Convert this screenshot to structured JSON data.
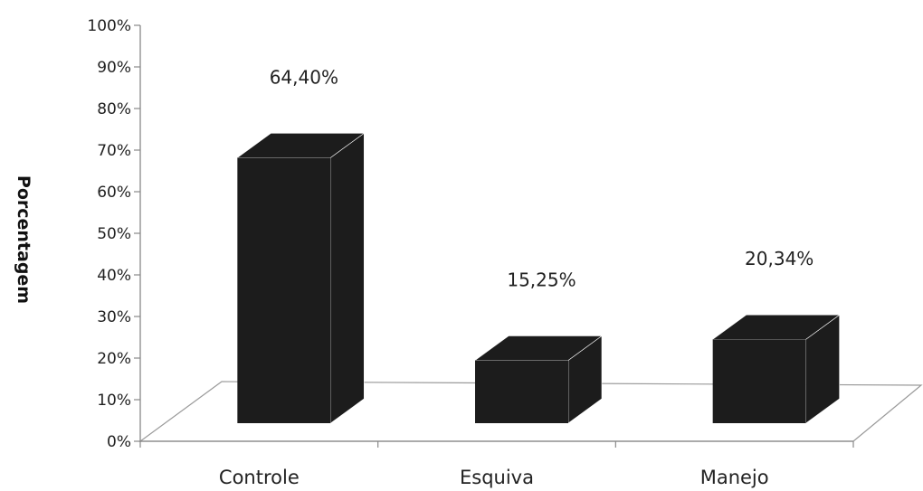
{
  "chart_data": {
    "type": "bar",
    "style": "3d-column",
    "title": "",
    "xlabel": "",
    "ylabel": "Porcentagem",
    "categories": [
      "Controle",
      "Esquiva",
      "Manejo"
    ],
    "values": [
      64.4,
      15.25,
      20.34
    ],
    "data_labels": [
      "64,40%",
      "15,25%",
      "20,34%"
    ],
    "ylim": [
      0,
      100
    ],
    "y_ticks": [
      0,
      10,
      20,
      30,
      40,
      50,
      60,
      70,
      80,
      90,
      100
    ],
    "y_tick_labels": [
      "0%",
      "10%",
      "20%",
      "30%",
      "40%",
      "50%",
      "60%",
      "70%",
      "80%",
      "90%",
      "100%"
    ],
    "grid": false,
    "legend": "none",
    "bar_color": "#1c1c1c",
    "floor_color": "#9a9a9a",
    "axis_color": "#888888"
  }
}
